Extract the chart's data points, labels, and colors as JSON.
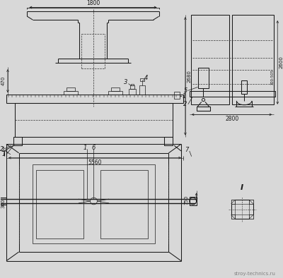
{
  "bg_color": "#d8d8d8",
  "watermark": "stroy-technics.ru",
  "dim_1800": "1800",
  "dim_470": "470",
  "dim_2680": "2680",
  "dim_5560": "5560",
  "dim_2600": "2600",
  "dim_2800": "2800",
  "dim_300": "300",
  "dim_750": "750",
  "dim_300_505": "300-505",
  "line_color": "#1a1a1a",
  "dash_color": "#333333",
  "thin_lw": 0.5,
  "thick_lw": 1.0,
  "medium_lw": 0.75
}
